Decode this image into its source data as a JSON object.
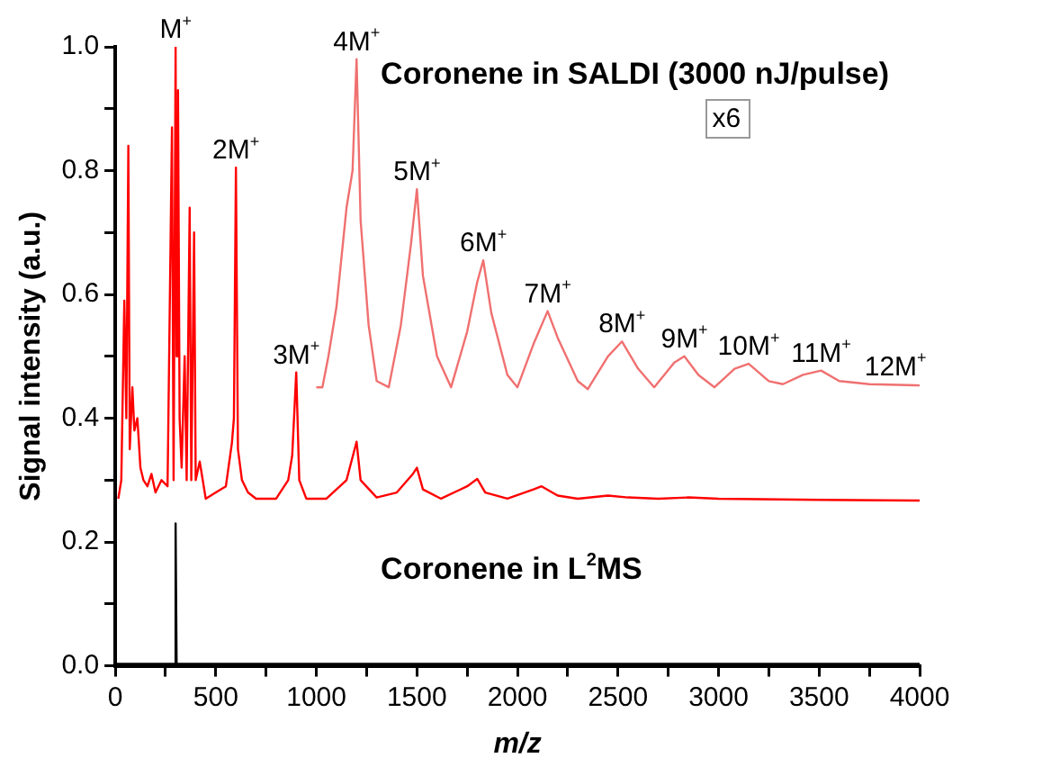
{
  "chart_data": {
    "type": "line",
    "xlabel": "m/z",
    "ylabel": "Signal intensity (a.u.)",
    "xlim": [
      0,
      4000
    ],
    "ylim": [
      0,
      1.0
    ],
    "xticks": [
      0,
      {
        "value": 250,
        "label": null
      },
      500,
      {
        "value": 750,
        "label": null
      },
      1000,
      {
        "value": 1250,
        "label": null
      },
      1500,
      {
        "value": 1750,
        "label": null
      },
      2000,
      {
        "value": 2250,
        "label": null
      },
      2500,
      {
        "value": 2750,
        "label": null
      },
      3000,
      {
        "value": 3250,
        "label": null
      },
      3500,
      {
        "value": 3750,
        "label": null
      },
      4000
    ],
    "yticks": [
      {
        "value": 0,
        "label": "0.0"
      },
      {
        "value": 0.1,
        "label": null
      },
      0.2,
      {
        "value": 0.3,
        "label": null
      },
      0.4,
      {
        "value": 0.5,
        "label": null
      },
      0.6,
      {
        "value": 0.7,
        "label": null
      },
      0.8,
      {
        "value": 0.9,
        "label": null
      },
      {
        "value": 1,
        "label": "1.0"
      }
    ],
    "grid": false,
    "legend": false,
    "marker": "none",
    "line_style": "solid",
    "series": [
      {
        "color": "#000000",
        "x": [
          0,
          295,
          300,
          305,
          4000
        ],
        "values": [
          0.003,
          0.003,
          0.23,
          0.003,
          0.003
        ]
      },
      {
        "color": "#ff0000",
        "x": [
          15,
          30,
          45,
          55,
          65,
          72,
          85,
          95,
          110,
          125,
          140,
          160,
          180,
          200,
          230,
          260,
          282,
          290,
          300,
          305,
          312,
          320,
          330,
          345,
          355,
          370,
          378,
          392,
          400,
          420,
          450,
          500,
          550,
          580,
          590,
          600,
          610,
          630,
          660,
          700,
          800,
          860,
          880,
          900,
          915,
          950,
          1050,
          1150,
          1200,
          1220,
          1300,
          1400,
          1480,
          1500,
          1530,
          1620,
          1750,
          1800,
          1840,
          1950,
          2080,
          2120,
          2200,
          2300,
          2450,
          2550,
          2700,
          2850,
          3000,
          3500,
          4000
        ],
        "values": [
          0.27,
          0.3,
          0.59,
          0.4,
          0.84,
          0.35,
          0.45,
          0.38,
          0.4,
          0.32,
          0.3,
          0.29,
          0.31,
          0.28,
          0.3,
          0.29,
          0.87,
          0.3,
          1.0,
          0.5,
          0.93,
          0.4,
          0.32,
          0.5,
          0.3,
          0.74,
          0.3,
          0.7,
          0.3,
          0.33,
          0.27,
          0.28,
          0.29,
          0.36,
          0.4,
          0.805,
          0.35,
          0.3,
          0.28,
          0.27,
          0.27,
          0.3,
          0.34,
          0.474,
          0.3,
          0.27,
          0.27,
          0.3,
          0.362,
          0.3,
          0.272,
          0.28,
          0.31,
          0.32,
          0.285,
          0.27,
          0.29,
          0.302,
          0.28,
          0.27,
          0.285,
          0.29,
          0.275,
          0.27,
          0.275,
          0.272,
          0.27,
          0.272,
          0.27,
          0.268,
          0.267
        ]
      },
      {
        "color": "#f07070",
        "x": [
          1000,
          1030,
          1060,
          1100,
          1150,
          1180,
          1200,
          1220,
          1260,
          1300,
          1360,
          1420,
          1470,
          1500,
          1530,
          1600,
          1670,
          1750,
          1800,
          1830,
          1870,
          1950,
          2000,
          2080,
          2150,
          2200,
          2300,
          2350,
          2450,
          2520,
          2600,
          2680,
          2780,
          2830,
          2900,
          2980,
          3080,
          3150,
          3250,
          3320,
          3420,
          3510,
          3600,
          3750,
          4000
        ],
        "values": [
          0.45,
          0.45,
          0.5,
          0.58,
          0.74,
          0.8,
          0.98,
          0.72,
          0.55,
          0.46,
          0.45,
          0.55,
          0.68,
          0.77,
          0.63,
          0.5,
          0.45,
          0.54,
          0.62,
          0.655,
          0.57,
          0.47,
          0.45,
          0.52,
          0.573,
          0.53,
          0.46,
          0.447,
          0.5,
          0.524,
          0.48,
          0.45,
          0.49,
          0.5,
          0.47,
          0.45,
          0.48,
          0.488,
          0.46,
          0.455,
          0.47,
          0.477,
          0.46,
          0.455,
          0.453
        ]
      }
    ],
    "annotations": [
      {
        "text": "M$^{+}$",
        "x": 300,
        "y": 1.0
      },
      {
        "text": "2M$^{+}$",
        "x": 600,
        "y": 0.805
      },
      {
        "text": "3M$^{+}$",
        "x": 900,
        "y": 0.474
      },
      {
        "text": "4M$^{+}$",
        "x": 1200,
        "y": 0.98
      },
      {
        "text": "5M$^{+}$",
        "x": 1500,
        "y": 0.77
      },
      {
        "text": "6M$^{+}$",
        "x": 1830,
        "y": 0.655
      },
      {
        "text": "7M$^{+}$",
        "x": 2150,
        "y": 0.573
      },
      {
        "text": "8M$^{+}$",
        "x": 2520,
        "y": 0.524
      },
      {
        "text": "9M$^{+}$",
        "x": 2830,
        "y": 0.5
      },
      {
        "text": "10M$^{+}$",
        "x": 3150,
        "y": 0.488
      },
      {
        "text": "11M$^{+}$",
        "x": 3510,
        "y": 0.477
      },
      {
        "text": "12M$^{+}$",
        "x": 3880,
        "y": 0.455
      },
      "Coronene in SALDI (3000 nJ/pulse)",
      "x6",
      "Coronene in L$^{2}$MS"
    ]
  }
}
